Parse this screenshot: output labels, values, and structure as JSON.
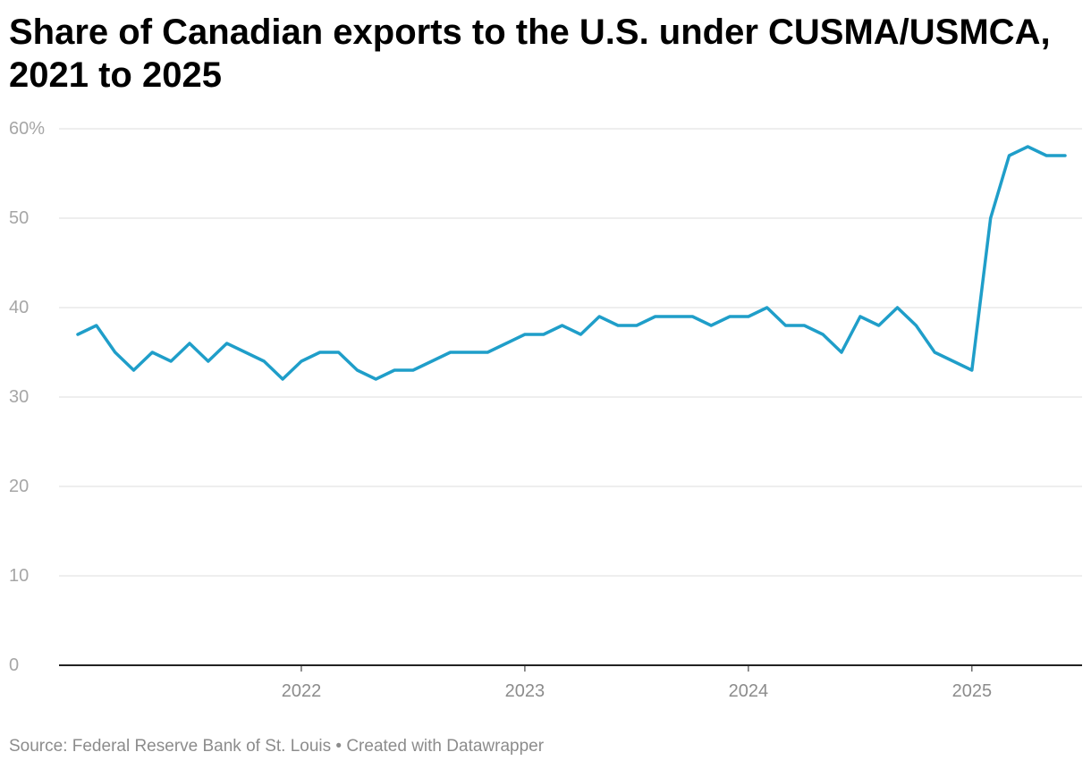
{
  "chart_data": {
    "type": "line",
    "title": "Share of Canadian exports to the U.S. under CUSMA/USMCA, 2021 to 2025",
    "xlabel": "",
    "ylabel": "",
    "ylim": [
      0,
      60
    ],
    "y_ticks": [
      0,
      10,
      20,
      30,
      40,
      50,
      60
    ],
    "y_tick_labels": [
      "0",
      "10",
      "20",
      "30",
      "40",
      "50",
      "60%"
    ],
    "x_tick_labels": [
      "2022",
      "2023",
      "2024",
      "2025"
    ],
    "grid": true,
    "color": "#1f9ec9",
    "x": [
      "2021-01",
      "2021-02",
      "2021-03",
      "2021-04",
      "2021-05",
      "2021-06",
      "2021-07",
      "2021-08",
      "2021-09",
      "2021-10",
      "2021-11",
      "2021-12",
      "2022-01",
      "2022-02",
      "2022-03",
      "2022-04",
      "2022-05",
      "2022-06",
      "2022-07",
      "2022-08",
      "2022-09",
      "2022-10",
      "2022-11",
      "2022-12",
      "2023-01",
      "2023-02",
      "2023-03",
      "2023-04",
      "2023-05",
      "2023-06",
      "2023-07",
      "2023-08",
      "2023-09",
      "2023-10",
      "2023-11",
      "2023-12",
      "2024-01",
      "2024-02",
      "2024-03",
      "2024-04",
      "2024-05",
      "2024-06",
      "2024-07",
      "2024-08",
      "2024-09",
      "2024-10",
      "2024-11",
      "2024-12",
      "2025-01",
      "2025-02",
      "2025-03",
      "2025-04",
      "2025-05",
      "2025-06"
    ],
    "values": [
      37,
      38,
      35,
      33,
      35,
      34,
      36,
      34,
      36,
      35,
      34,
      32,
      34,
      35,
      35,
      33,
      32,
      33,
      33,
      34,
      35,
      35,
      35,
      36,
      37,
      37,
      38,
      37,
      39,
      38,
      38,
      39,
      39,
      39,
      38,
      39,
      39,
      40,
      38,
      38,
      37,
      35,
      39,
      38,
      40,
      38,
      35,
      34,
      33,
      50,
      57,
      58,
      57,
      57
    ]
  },
  "footer": {
    "text": "Source: Federal Reserve Bank of St. Louis • Created with Datawrapper"
  }
}
